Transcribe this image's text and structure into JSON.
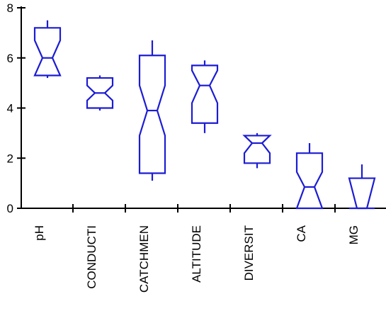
{
  "chart_data": {
    "type": "notched-box",
    "title": "",
    "xlabel": "",
    "ylabel": "",
    "ylim": [
      0,
      8
    ],
    "yticks": [
      0,
      2,
      4,
      6,
      8
    ],
    "grid": false,
    "box_color": "#1c1cd4",
    "categories": [
      "pH",
      "CONDUCTI",
      "CATCHMEN",
      "ALTITUDE",
      "DIVERSIT",
      "CA",
      "MG"
    ],
    "boxes": [
      {
        "category": "pH",
        "q1": 5.3,
        "median": 6.0,
        "q3": 7.2,
        "notch_low": 5.3,
        "notch_high": 6.7,
        "whisker_low": 5.2,
        "whisker_high": 7.5
      },
      {
        "category": "CONDUCTI",
        "q1": 4.0,
        "median": 4.6,
        "q3": 5.2,
        "notch_low": 4.3,
        "notch_high": 4.9,
        "whisker_low": 3.9,
        "whisker_high": 5.3
      },
      {
        "category": "CATCHMEN",
        "q1": 1.4,
        "median": 3.9,
        "q3": 6.1,
        "notch_low": 2.9,
        "notch_high": 4.9,
        "whisker_low": 1.1,
        "whisker_high": 6.7
      },
      {
        "category": "ALTITUDE",
        "q1": 3.4,
        "median": 4.9,
        "q3": 5.7,
        "notch_low": 4.2,
        "notch_high": 5.5,
        "whisker_low": 3.0,
        "whisker_high": 5.9
      },
      {
        "category": "DIVERSIT",
        "q1": 1.8,
        "median": 2.6,
        "q3": 2.9,
        "notch_low": 2.2,
        "notch_high": 2.9,
        "whisker_low": 1.6,
        "whisker_high": 3.0
      },
      {
        "category": "CA",
        "q1": 0.0,
        "median": 0.85,
        "q3": 2.2,
        "notch_low": 0.0,
        "notch_high": 1.45,
        "whisker_low": 0.0,
        "whisker_high": 2.6
      },
      {
        "category": "MG",
        "q1": 0.0,
        "median": 0.0,
        "q3": 1.2,
        "notch_low": 0.0,
        "notch_high": 1.2,
        "whisker_low": 0.0,
        "whisker_high": 1.75
      }
    ]
  }
}
